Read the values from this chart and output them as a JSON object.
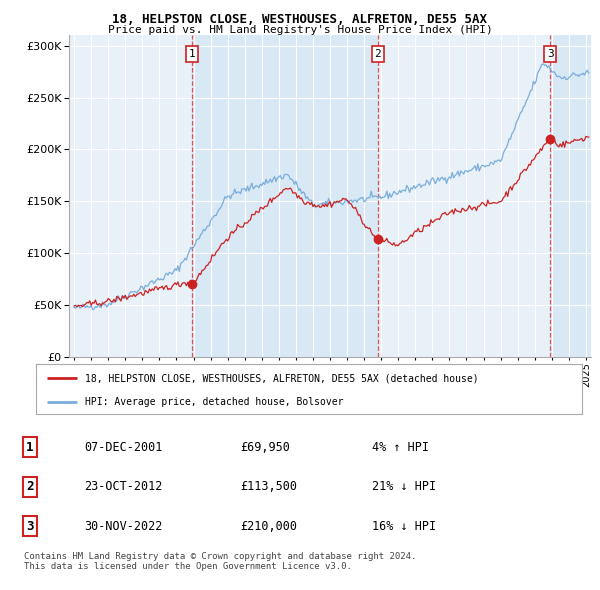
{
  "title1": "18, HELPSTON CLOSE, WESTHOUSES, ALFRETON, DE55 5AX",
  "title2": "Price paid vs. HM Land Registry's House Price Index (HPI)",
  "legend_line1": "18, HELPSTON CLOSE, WESTHOUSES, ALFRETON, DE55 5AX (detached house)",
  "legend_line2": "HPI: Average price, detached house, Bolsover",
  "table": [
    {
      "num": "1",
      "date": "07-DEC-2001",
      "price": "£69,950",
      "hpi": "4% ↑ HPI"
    },
    {
      "num": "2",
      "date": "23-OCT-2012",
      "price": "£113,500",
      "hpi": "21% ↓ HPI"
    },
    {
      "num": "3",
      "date": "30-NOV-2022",
      "price": "£210,000",
      "hpi": "16% ↓ HPI"
    }
  ],
  "footnote": "Contains HM Land Registry data © Crown copyright and database right 2024.\nThis data is licensed under the Open Government Licence v3.0.",
  "sale_dates": [
    2001.92,
    2012.81,
    2022.91
  ],
  "sale_prices": [
    69950,
    113500,
    210000
  ],
  "hpi_color": "#7aaddb",
  "price_color": "#cc2222",
  "vline_color": "#dd4444",
  "shade_color": "#d8e8f5",
  "background_color": "#e8f0f8",
  "plot_bg": "#e8f0f8",
  "ylim": [
    0,
    310000
  ],
  "yticks": [
    0,
    50000,
    100000,
    150000,
    200000,
    250000,
    300000
  ],
  "xmin": 1994.7,
  "xmax": 2025.3
}
